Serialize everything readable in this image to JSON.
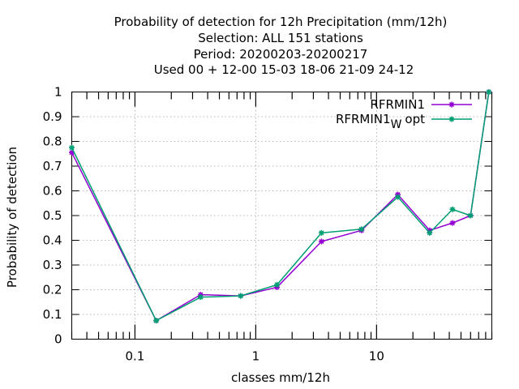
{
  "chart_data": {
    "type": "line",
    "title_lines": [
      "Probability of detection  for 12h Precipitation (mm/12h)",
      "Selection: ALL    151 stations",
      "Period: 20200203-20200217",
      "Used  00 + 12-00 15-03 18-06 21-09 24-12"
    ],
    "xlabel": "classes mm/12h",
    "ylabel": "Probability of detection",
    "x_scale": "log",
    "xlim": [
      0.03,
      90
    ],
    "ylim": [
      0,
      1
    ],
    "x_tick_labels": [
      {
        "value": 0.1,
        "label": "0.1"
      },
      {
        "value": 1,
        "label": "1"
      },
      {
        "value": 10,
        "label": "10"
      }
    ],
    "y_ticks": [
      0,
      0.1,
      0.2,
      0.3,
      0.4,
      0.5,
      0.6,
      0.7,
      0.8,
      0.9,
      1
    ],
    "y_tick_labels": [
      "0",
      "0.1",
      "0.2",
      "0.3",
      "0.4",
      "0.5",
      "0.6",
      "0.7",
      "0.8",
      "0.9",
      "1"
    ],
    "grid": true,
    "legend_position": "top-right",
    "series": [
      {
        "name": "RFRMIN1",
        "color": "#9400d3",
        "x": [
          0.03,
          0.15,
          0.35,
          0.75,
          1.5,
          3.5,
          7.5,
          15,
          27.5,
          42.5,
          60,
          85
        ],
        "y": [
          0.755,
          0.075,
          0.18,
          0.175,
          0.21,
          0.395,
          0.44,
          0.585,
          0.44,
          0.47,
          0.5,
          1.0
        ]
      },
      {
        "name": "RFRMIN1",
        "name_subscript": "W",
        "name_suffix": "opt",
        "color": "#009e73",
        "x": [
          0.03,
          0.15,
          0.35,
          0.75,
          1.5,
          3.5,
          7.5,
          15,
          27.5,
          42.5,
          60,
          85
        ],
        "y": [
          0.775,
          0.075,
          0.17,
          0.175,
          0.22,
          0.43,
          0.445,
          0.575,
          0.43,
          0.525,
          0.5,
          1.0
        ]
      }
    ]
  }
}
